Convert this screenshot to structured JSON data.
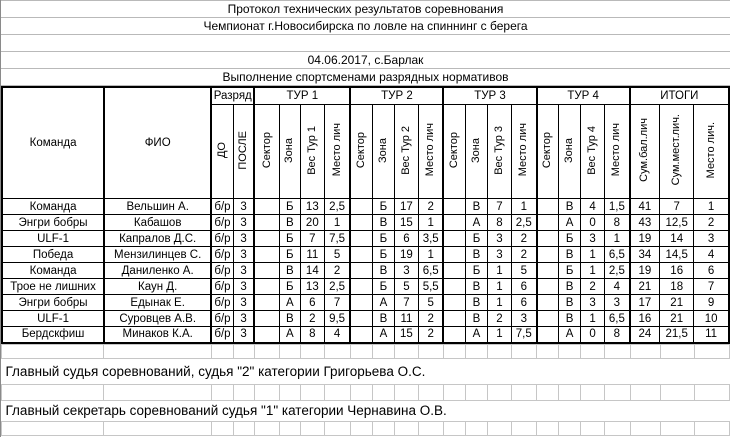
{
  "titles": {
    "protocol_title": "Протокол технических результатов соревнования",
    "championship_title": "Чемпионат г.Новосибирска по ловле на спиннинг с берега",
    "date_location": "04.06.2017, с.Барлак",
    "subtitle": "Выполнение спортсменами разрядных нормативов"
  },
  "table": {
    "headers": {
      "team": "Команда",
      "name": "ФИО",
      "razryad": "Разряд",
      "razryad_sub": [
        "ДО",
        "ПОСЛЕ"
      ],
      "tours": [
        {
          "label": "ТУР 1",
          "sub": [
            "Сектор",
            "Зона",
            "Вес Тур 1",
            "Место лич"
          ]
        },
        {
          "label": "ТУР 2",
          "sub": [
            "Сектор",
            "Зона",
            "Вес Тур 2",
            "Место лич"
          ]
        },
        {
          "label": "ТУР 3",
          "sub": [
            "Сектор",
            "Зона",
            "Вес Тур 3",
            "Место лич"
          ]
        },
        {
          "label": "ТУР 4",
          "sub": [
            "Сектор",
            "Зона",
            "Вес Тур 4",
            "Место лич"
          ]
        }
      ],
      "itogi": "ИТОГИ",
      "itogi_sub": [
        "Сум.бал.лич",
        "Сум.мест.лич.",
        "Место лич."
      ]
    },
    "rows": [
      {
        "team": "Команда",
        "name": "Вельшин А.",
        "do": "б/р",
        "posle": "3",
        "t1": [
          "",
          "Б",
          "13",
          "2,5"
        ],
        "t2": [
          "",
          "Б",
          "17",
          "2"
        ],
        "t3": [
          "",
          "В",
          "7",
          "1"
        ],
        "t4": [
          "",
          "В",
          "4",
          "1,5"
        ],
        "itogi": [
          "41",
          "7",
          "1"
        ]
      },
      {
        "team": "Энгри бобры",
        "name": "Кабашов",
        "do": "б/р",
        "posle": "3",
        "t1": [
          "",
          "В",
          "20",
          "1"
        ],
        "t2": [
          "",
          "В",
          "15",
          "1"
        ],
        "t3": [
          "",
          "А",
          "8",
          "2,5"
        ],
        "t4": [
          "",
          "А",
          "0",
          "8"
        ],
        "itogi": [
          "43",
          "12,5",
          "2"
        ]
      },
      {
        "team": "ULF-1",
        "name": "Капралов Д.С.",
        "do": "б/р",
        "posle": "3",
        "t1": [
          "",
          "Б",
          "7",
          "7,5"
        ],
        "t2": [
          "",
          "Б",
          "6",
          "3,5"
        ],
        "t3": [
          "",
          "Б",
          "3",
          "2"
        ],
        "t4": [
          "",
          "Б",
          "3",
          "1"
        ],
        "itogi": [
          "19",
          "14",
          "3"
        ]
      },
      {
        "team": "Победа",
        "name": "Мензилинцев С.",
        "do": "б/р",
        "posle": "3",
        "t1": [
          "",
          "Б",
          "11",
          "5"
        ],
        "t2": [
          "",
          "Б",
          "19",
          "1"
        ],
        "t3": [
          "",
          "В",
          "3",
          "2"
        ],
        "t4": [
          "",
          "В",
          "1",
          "6,5"
        ],
        "itogi": [
          "34",
          "14,5",
          "4"
        ]
      },
      {
        "team": "Команда",
        "name": "Даниленко А.",
        "do": "б/р",
        "posle": "3",
        "t1": [
          "",
          "В",
          "14",
          "2"
        ],
        "t2": [
          "",
          "В",
          "3",
          "6,5"
        ],
        "t3": [
          "",
          "Б",
          "1",
          "5"
        ],
        "t4": [
          "",
          "Б",
          "1",
          "2,5"
        ],
        "itogi": [
          "19",
          "16",
          "6"
        ]
      },
      {
        "team": "Трое не лишних",
        "name": "Каун Д.",
        "do": "б/р",
        "posle": "3",
        "t1": [
          "",
          "Б",
          "13",
          "2,5"
        ],
        "t2": [
          "",
          "Б",
          "5",
          "5,5"
        ],
        "t3": [
          "",
          "В",
          "1",
          "6"
        ],
        "t4": [
          "",
          "В",
          "2",
          "4"
        ],
        "itogi": [
          "21",
          "18",
          "7"
        ]
      },
      {
        "team": "Энгри бобры",
        "name": "Едынак Е.",
        "do": "б/р",
        "posle": "3",
        "t1": [
          "",
          "А",
          "6",
          "7"
        ],
        "t2": [
          "",
          "А",
          "7",
          "5"
        ],
        "t3": [
          "",
          "В",
          "1",
          "6"
        ],
        "t4": [
          "",
          "В",
          "3",
          "3"
        ],
        "itogi": [
          "17",
          "21",
          "9"
        ]
      },
      {
        "team": "ULF-1",
        "name": "Суровцев А.В.",
        "do": "б/р",
        "posle": "3",
        "t1": [
          "",
          "В",
          "2",
          "9,5"
        ],
        "t2": [
          "",
          "В",
          "11",
          "2"
        ],
        "t3": [
          "",
          "В",
          "2",
          "3"
        ],
        "t4": [
          "",
          "В",
          "1",
          "6,5"
        ],
        "itogi": [
          "16",
          "21",
          "10"
        ]
      },
      {
        "team": "Бердскфиш",
        "name": "Минаков К.А.",
        "do": "б/р",
        "posle": "3",
        "t1": [
          "",
          "А",
          "8",
          "4"
        ],
        "t2": [
          "",
          "А",
          "15",
          "2"
        ],
        "t3": [
          "",
          "А",
          "1",
          "7,5"
        ],
        "t4": [
          "",
          "А",
          "0",
          "8"
        ],
        "itogi": [
          "24",
          "21,5",
          "11"
        ]
      }
    ]
  },
  "footer": {
    "judge_line": "Главный судья соревнований, судья \"2\" категории Григорьева О.С.",
    "secretary_line": "Главный секретарь соревнований судья \"1\" категории Чернавина О.В."
  }
}
